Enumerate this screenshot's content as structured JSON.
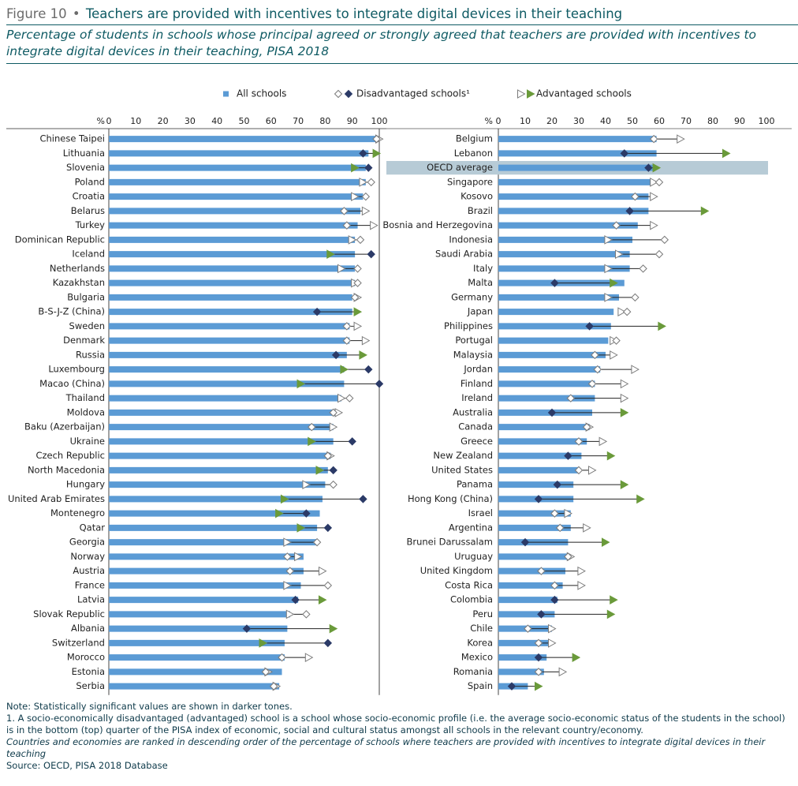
{
  "figure": {
    "label": "Figure 10",
    "separator": "•",
    "title": "Teachers are provided with incentives to integrate digital devices in their teaching",
    "subtitle": "Percentage of students in schools whose principal agreed or strongly agreed that teachers are provided with incentives to integrate digital devices in their teaching, PISA 2018"
  },
  "notes": {
    "note": "Note: Statistically significant values are shown in darker tones.",
    "footnote": "1. A socio-economically disadvantaged (advantaged) school is a school whose socio-economic profile (i.e. the average socio-economic status of the students in the school) is in the bottom (top) quarter of the PISA index of economic, social and cultural status amongst all schools in the relevant country/economy.",
    "ranking": "Countries and economies are ranked in descending order of the percentage of schools where teachers are provided with incentives to integrate digital devices in their teaching",
    "source": "Source: OECD, PISA 2018 Database"
  },
  "colors": {
    "bar": "#5b9bd5",
    "disadv_sig": "#2b3a67",
    "adv_sig": "#6a9a3a",
    "nonsig_fill": "#ffffff",
    "nonsig_stroke": "#7a7a7a",
    "highlight": "#b7cbd6",
    "title": "#0e5a63"
  },
  "chart_data": {
    "type": "bar",
    "orientation": "horizontal",
    "unit_label": "%",
    "xlim": [
      0,
      100
    ],
    "ticks": [
      0,
      10,
      20,
      30,
      40,
      50,
      60,
      70,
      80,
      90,
      100
    ],
    "legend": {
      "position": "top",
      "all": "All schools",
      "disadv": "Disadvantaged schools¹",
      "adv": "Advantaged schools"
    },
    "panels": [
      {
        "rows": [
          {
            "name": "Chinese Taipei",
            "all": 99,
            "dis": 99,
            "dsig": false,
            "adv": 100,
            "asig": false
          },
          {
            "name": "Lithuania",
            "all": 96,
            "dis": 94,
            "dsig": true,
            "adv": 99,
            "asig": true
          },
          {
            "name": "Slovenia",
            "all": 95,
            "dis": 96,
            "dsig": true,
            "adv": 91,
            "asig": true
          },
          {
            "name": "Poland",
            "all": 95,
            "dis": 97,
            "dsig": false,
            "adv": 94,
            "asig": false
          },
          {
            "name": "Croatia",
            "all": 94,
            "dis": 95,
            "dsig": false,
            "adv": 91,
            "asig": false
          },
          {
            "name": "Belarus",
            "all": 93,
            "dis": 87,
            "dsig": false,
            "adv": 95,
            "asig": false
          },
          {
            "name": "Turkey",
            "all": 92,
            "dis": 88,
            "dsig": false,
            "adv": 98,
            "asig": false
          },
          {
            "name": "Dominican Republic",
            "all": 91,
            "dis": 93,
            "dsig": false,
            "adv": 90,
            "asig": false
          },
          {
            "name": "Iceland",
            "all": 91,
            "dis": 97,
            "dsig": true,
            "adv": 82,
            "asig": true
          },
          {
            "name": "Netherlands",
            "all": 91,
            "dis": 92,
            "dsig": false,
            "adv": 86,
            "asig": false
          },
          {
            "name": "Kazakhstan",
            "all": 91,
            "dis": 92,
            "dsig": false,
            "adv": 91,
            "asig": false
          },
          {
            "name": "Bulgaria",
            "all": 90,
            "dis": 91,
            "dsig": false,
            "adv": 92,
            "asig": false
          },
          {
            "name": "B-S-J-Z (China)",
            "all": 90,
            "dis": 77,
            "dsig": true,
            "adv": 92,
            "asig": true
          },
          {
            "name": "Sweden",
            "all": 89,
            "dis": 88,
            "dsig": false,
            "adv": 92,
            "asig": false
          },
          {
            "name": "Denmark",
            "all": 89,
            "dis": 88,
            "dsig": false,
            "adv": 95,
            "asig": false
          },
          {
            "name": "Russia",
            "all": 88,
            "dis": 84,
            "dsig": true,
            "adv": 94,
            "asig": true
          },
          {
            "name": "Luxembourg",
            "all": 87,
            "dis": 96,
            "dsig": true,
            "adv": 87,
            "asig": true
          },
          {
            "name": "Macao (China)",
            "all": 87,
            "dis": 100,
            "dsig": true,
            "adv": 71,
            "asig": true
          },
          {
            "name": "Thailand",
            "all": 86,
            "dis": 89,
            "dsig": false,
            "adv": 86,
            "asig": false
          },
          {
            "name": "Moldova",
            "all": 84,
            "dis": 83,
            "dsig": false,
            "adv": 85,
            "asig": false
          },
          {
            "name": "Baku (Azerbaijan)",
            "all": 83,
            "dis": 75,
            "dsig": false,
            "adv": 83,
            "asig": false
          },
          {
            "name": "Ukraine",
            "all": 83,
            "dis": 90,
            "dsig": true,
            "adv": 75,
            "asig": true
          },
          {
            "name": "Czech Republic",
            "all": 82,
            "dis": 81,
            "dsig": false,
            "adv": 82,
            "asig": false
          },
          {
            "name": "North Macedonia",
            "all": 81,
            "dis": 83,
            "dsig": true,
            "adv": 78,
            "asig": true
          },
          {
            "name": "Hungary",
            "all": 80,
            "dis": 83,
            "dsig": false,
            "adv": 73,
            "asig": false
          },
          {
            "name": "United Arab Emirates",
            "all": 79,
            "dis": 94,
            "dsig": true,
            "adv": 65,
            "asig": true
          },
          {
            "name": "Montenegro",
            "all": 78,
            "dis": 73,
            "dsig": true,
            "adv": 63,
            "asig": true
          },
          {
            "name": "Qatar",
            "all": 77,
            "dis": 81,
            "dsig": true,
            "adv": 71,
            "asig": true
          },
          {
            "name": "Georgia",
            "all": 77,
            "dis": 77,
            "dsig": false,
            "adv": 66,
            "asig": false
          },
          {
            "name": "Norway",
            "all": 72,
            "dis": 66,
            "dsig": false,
            "adv": 70,
            "asig": false
          },
          {
            "name": "Austria",
            "all": 72,
            "dis": 67,
            "dsig": false,
            "adv": 79,
            "asig": false
          },
          {
            "name": "France",
            "all": 71,
            "dis": 81,
            "dsig": false,
            "adv": 66,
            "asig": false
          },
          {
            "name": "Latvia",
            "all": 70,
            "dis": 69,
            "dsig": true,
            "adv": 79,
            "asig": true
          },
          {
            "name": "Slovak Republic",
            "all": 67,
            "dis": 73,
            "dsig": false,
            "adv": 67,
            "asig": false
          },
          {
            "name": "Albania",
            "all": 66,
            "dis": 51,
            "dsig": true,
            "adv": 83,
            "asig": true
          },
          {
            "name": "Switzerland",
            "all": 65,
            "dis": 81,
            "dsig": true,
            "adv": 57,
            "asig": true
          },
          {
            "name": "Morocco",
            "all": 65,
            "dis": 64,
            "dsig": false,
            "adv": 74,
            "asig": false
          },
          {
            "name": "Estonia",
            "all": 64,
            "dis": 58,
            "dsig": false,
            "adv": 59,
            "asig": false
          },
          {
            "name": "Serbia",
            "all": 63,
            "dis": 61,
            "dsig": false,
            "adv": 62,
            "asig": false
          }
        ]
      },
      {
        "rows": [
          {
            "name": "Belgium",
            "all": 59,
            "dis": 58,
            "dsig": false,
            "adv": 68,
            "asig": false
          },
          {
            "name": "Lebanon",
            "all": 59,
            "dis": 47,
            "dsig": true,
            "adv": 85,
            "asig": true
          },
          {
            "name": "OECD average",
            "all": 58,
            "dis": 56,
            "dsig": true,
            "adv": 59,
            "asig": true,
            "highlight": true
          },
          {
            "name": "Singapore",
            "all": 57,
            "dis": 60,
            "dsig": false,
            "adv": 58,
            "asig": false
          },
          {
            "name": "Kosovo",
            "all": 56,
            "dis": 51,
            "dsig": false,
            "adv": 58,
            "asig": false
          },
          {
            "name": "Brazil",
            "all": 56,
            "dis": 49,
            "dsig": true,
            "adv": 77,
            "asig": true
          },
          {
            "name": "Bosnia and Herzegovina",
            "all": 52,
            "dis": 44,
            "dsig": false,
            "adv": 58,
            "asig": false
          },
          {
            "name": "Indonesia",
            "all": 50,
            "dis": 62,
            "dsig": false,
            "adv": 41,
            "asig": false
          },
          {
            "name": "Saudi Arabia",
            "all": 49,
            "dis": 60,
            "dsig": false,
            "adv": 45,
            "asig": false
          },
          {
            "name": "Italy",
            "all": 49,
            "dis": 54,
            "dsig": false,
            "adv": 41,
            "asig": false
          },
          {
            "name": "Malta",
            "all": 47,
            "dis": 21,
            "dsig": true,
            "adv": 43,
            "asig": true
          },
          {
            "name": "Germany",
            "all": 45,
            "dis": 51,
            "dsig": false,
            "adv": 41,
            "asig": false
          },
          {
            "name": "Japan",
            "all": 43,
            "dis": 48,
            "dsig": false,
            "adv": 46,
            "asig": false
          },
          {
            "name": "Philippines",
            "all": 42,
            "dis": 34,
            "dsig": true,
            "adv": 61,
            "asig": true
          },
          {
            "name": "Portugal",
            "all": 41,
            "dis": 44,
            "dsig": false,
            "adv": 43,
            "asig": false
          },
          {
            "name": "Malaysia",
            "all": 40,
            "dis": 36,
            "dsig": false,
            "adv": 43,
            "asig": false
          },
          {
            "name": "Jordan",
            "all": 38,
            "dis": 37,
            "dsig": false,
            "adv": 51,
            "asig": false
          },
          {
            "name": "Finland",
            "all": 36,
            "dis": 35,
            "dsig": false,
            "adv": 47,
            "asig": false
          },
          {
            "name": "Ireland",
            "all": 36,
            "dis": 27,
            "dsig": false,
            "adv": 47,
            "asig": false
          },
          {
            "name": "Australia",
            "all": 35,
            "dis": 20,
            "dsig": true,
            "adv": 47,
            "asig": true
          },
          {
            "name": "Canada",
            "all": 34,
            "dis": 33,
            "dsig": false,
            "adv": 34,
            "asig": false
          },
          {
            "name": "Greece",
            "all": 33,
            "dis": 30,
            "dsig": false,
            "adv": 39,
            "asig": false
          },
          {
            "name": "New Zealand",
            "all": 31,
            "dis": 26,
            "dsig": true,
            "adv": 42,
            "asig": true
          },
          {
            "name": "United States",
            "all": 30,
            "dis": 30,
            "dsig": false,
            "adv": 35,
            "asig": false
          },
          {
            "name": "Panama",
            "all": 28,
            "dis": 22,
            "dsig": true,
            "adv": 47,
            "asig": true
          },
          {
            "name": "Hong Kong (China)",
            "all": 28,
            "dis": 15,
            "dsig": true,
            "adv": 53,
            "asig": true
          },
          {
            "name": "Israel",
            "all": 27,
            "dis": 21,
            "dsig": false,
            "adv": 26,
            "asig": false
          },
          {
            "name": "Argentina",
            "all": 27,
            "dis": 23,
            "dsig": false,
            "adv": 33,
            "asig": false
          },
          {
            "name": "Brunei Darussalam",
            "all": 26,
            "dis": 10,
            "dsig": true,
            "adv": 40,
            "asig": true
          },
          {
            "name": "Uruguay",
            "all": 26,
            "dis": 26,
            "dsig": false,
            "adv": 27,
            "asig": false
          },
          {
            "name": "United Kingdom",
            "all": 25,
            "dis": 16,
            "dsig": false,
            "adv": 31,
            "asig": false
          },
          {
            "name": "Costa Rica",
            "all": 24,
            "dis": 21,
            "dsig": false,
            "adv": 31,
            "asig": false
          },
          {
            "name": "Colombia",
            "all": 22,
            "dis": 21,
            "dsig": true,
            "adv": 43,
            "asig": true
          },
          {
            "name": "Peru",
            "all": 21,
            "dis": 16,
            "dsig": true,
            "adv": 42,
            "asig": true
          },
          {
            "name": "Chile",
            "all": 20,
            "dis": 11,
            "dsig": false,
            "adv": 20,
            "asig": false
          },
          {
            "name": "Korea",
            "all": 19,
            "dis": 15,
            "dsig": false,
            "adv": 20,
            "asig": false
          },
          {
            "name": "Mexico",
            "all": 18,
            "dis": 15,
            "dsig": true,
            "adv": 29,
            "asig": true
          },
          {
            "name": "Romania",
            "all": 17,
            "dis": 15,
            "dsig": false,
            "adv": 24,
            "asig": false
          },
          {
            "name": "Spain",
            "all": 11,
            "dis": 5,
            "dsig": true,
            "adv": 15,
            "asig": true
          }
        ]
      }
    ]
  }
}
